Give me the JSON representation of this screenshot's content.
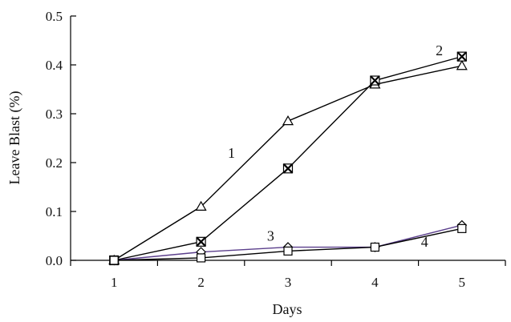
{
  "chart_data": {
    "type": "line",
    "xlabel": "Days",
    "ylabel": "Leave Blast (%)",
    "x": [
      1,
      2,
      3,
      4,
      5
    ],
    "xlim": [
      0.5,
      5.5
    ],
    "ylim": [
      0,
      0.5
    ],
    "x_ticks": [
      "1",
      "2",
      "3",
      "4",
      "5"
    ],
    "y_ticks": [
      "0.0",
      "0.1",
      "0.2",
      "0.3",
      "0.4",
      "0.5"
    ],
    "grid": false,
    "series": [
      {
        "name": "1",
        "marker": "triangle",
        "color": "#000000",
        "values": [
          0.0,
          0.11,
          0.285,
          0.36,
          0.398
        ]
      },
      {
        "name": "2",
        "marker": "square-x",
        "color": "#000000",
        "values": [
          0.0,
          0.038,
          0.188,
          0.368,
          0.417
        ]
      },
      {
        "name": "3",
        "marker": "diamond",
        "color": "#5b3f8c",
        "values": [
          0.0,
          0.017,
          0.027,
          0.027,
          0.072
        ]
      },
      {
        "name": "4",
        "marker": "square",
        "color": "#000000",
        "values": [
          0.0,
          0.005,
          0.019,
          0.027,
          0.065
        ]
      }
    ],
    "series_labels": [
      {
        "text": "1",
        "x": 2.35,
        "y": 0.21
      },
      {
        "text": "2",
        "x": 4.74,
        "y": 0.42
      },
      {
        "text": "3",
        "x": 2.8,
        "y": 0.04
      },
      {
        "text": "4",
        "x": 4.57,
        "y": 0.028
      }
    ]
  }
}
